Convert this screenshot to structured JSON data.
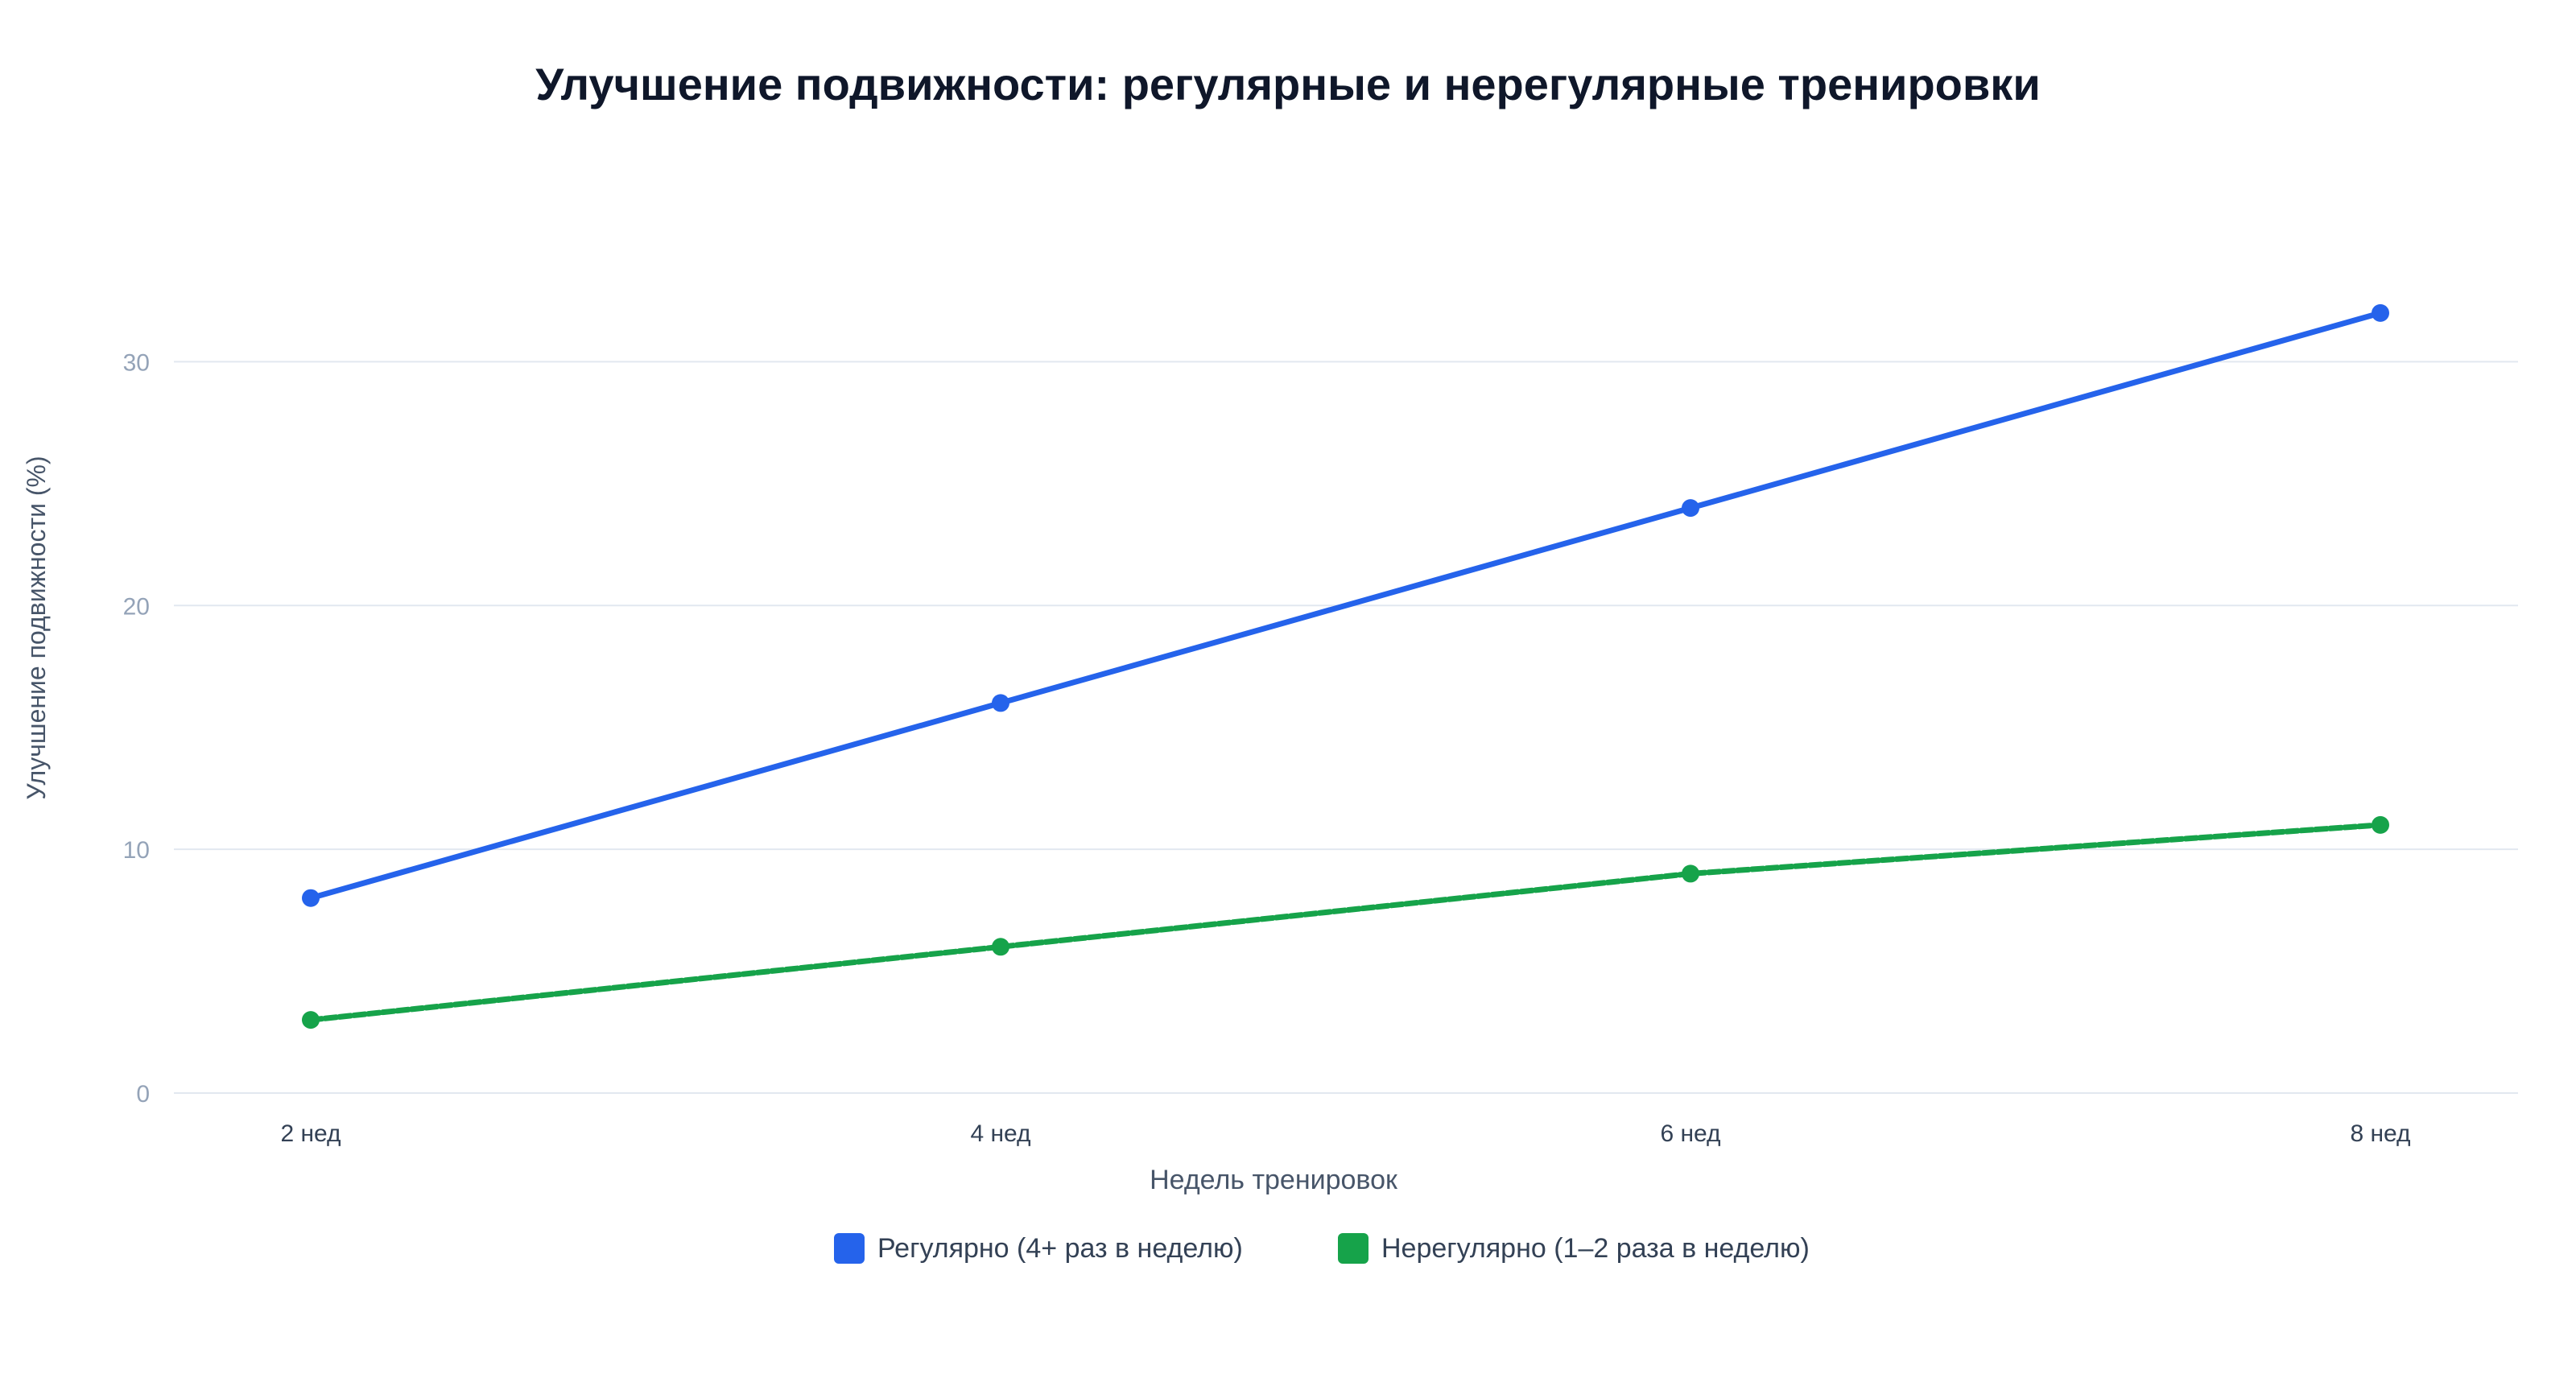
{
  "chart_data": {
    "type": "line",
    "title": "Улучшение подвижности: регулярные и нерегулярные тренировки",
    "xlabel": "Недель тренировок",
    "ylabel": "Улучшение подвижности (%)",
    "categories": [
      "2 нед",
      "4 нед",
      "6 нед",
      "8 нед"
    ],
    "y_ticks": [
      0,
      10,
      20,
      30
    ],
    "ylim": [
      0,
      35
    ],
    "grid": "horizontal",
    "legend_position": "bottom-center",
    "series": [
      {
        "name": "Регулярно (4+ раз в неделю)",
        "values": [
          8,
          16,
          24,
          32
        ],
        "color": "#2563eb",
        "line_style": "solid"
      },
      {
        "name": "Нерегулярно (1–2 раза в неделю)",
        "values": [
          3,
          6,
          9,
          11
        ],
        "color": "#16a34a",
        "line_style": "dashed"
      }
    ]
  }
}
